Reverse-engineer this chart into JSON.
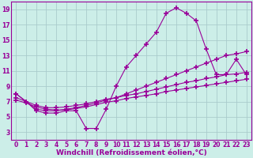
{
  "background_color": "#cceee8",
  "grid_color": "#aacccc",
  "line_color": "#990099",
  "marker": "+",
  "markersize": 4,
  "markeredgewidth": 1.2,
  "linewidth": 0.8,
  "xlabel": "Windchill (Refroidissement éolien,°C)",
  "xlabel_fontsize": 6.5,
  "tick_fontsize": 5.5,
  "xlim": [
    -0.5,
    23.5
  ],
  "ylim": [
    2.0,
    20.0
  ],
  "yticks": [
    3,
    5,
    7,
    9,
    11,
    13,
    15,
    17,
    19
  ],
  "xticks": [
    0,
    1,
    2,
    3,
    4,
    5,
    6,
    7,
    8,
    9,
    10,
    11,
    12,
    13,
    14,
    15,
    16,
    17,
    18,
    19,
    20,
    21,
    22,
    23
  ],
  "series1_x": [
    0,
    1,
    2,
    3,
    4,
    5,
    6,
    7,
    8,
    9,
    10,
    11,
    12,
    13,
    14,
    15,
    16,
    17,
    18,
    19,
    20,
    21,
    22,
    23
  ],
  "series1_y": [
    8.0,
    7.0,
    5.8,
    5.5,
    5.5,
    5.8,
    5.8,
    3.5,
    3.5,
    6.0,
    9.0,
    11.5,
    13.0,
    14.5,
    16.0,
    18.5,
    19.2,
    18.5,
    17.5,
    13.8,
    10.5,
    10.5,
    12.5,
    10.5
  ],
  "series2_x": [
    0,
    1,
    2,
    3,
    4,
    5,
    6,
    7,
    8,
    9,
    10,
    11,
    12,
    13,
    14,
    15,
    16,
    17,
    18,
    19,
    20,
    21,
    22,
    23
  ],
  "series2_y": [
    8.0,
    7.0,
    6.0,
    5.8,
    5.8,
    6.0,
    6.2,
    6.5,
    6.8,
    7.2,
    7.5,
    8.0,
    8.5,
    9.0,
    9.5,
    10.0,
    10.5,
    11.0,
    11.5,
    12.0,
    12.5,
    13.0,
    13.2,
    13.5
  ],
  "series3_x": [
    0,
    1,
    2,
    3,
    4,
    5,
    6,
    7,
    8,
    9,
    10,
    11,
    12,
    13,
    14,
    15,
    16,
    17,
    18,
    19,
    20,
    21,
    22,
    23
  ],
  "series3_y": [
    7.5,
    7.0,
    6.5,
    6.2,
    6.2,
    6.3,
    6.5,
    6.7,
    7.0,
    7.3,
    7.5,
    7.8,
    8.0,
    8.3,
    8.6,
    8.9,
    9.2,
    9.5,
    9.7,
    10.0,
    10.2,
    10.5,
    10.6,
    10.8
  ],
  "series4_x": [
    0,
    1,
    2,
    3,
    4,
    5,
    6,
    7,
    8,
    9,
    10,
    11,
    12,
    13,
    14,
    15,
    16,
    17,
    18,
    19,
    20,
    21,
    22,
    23
  ],
  "series4_y": [
    7.2,
    6.8,
    6.3,
    6.0,
    5.9,
    5.9,
    6.1,
    6.3,
    6.6,
    6.9,
    7.1,
    7.4,
    7.6,
    7.8,
    8.0,
    8.3,
    8.5,
    8.7,
    8.9,
    9.1,
    9.3,
    9.5,
    9.7,
    9.9
  ]
}
